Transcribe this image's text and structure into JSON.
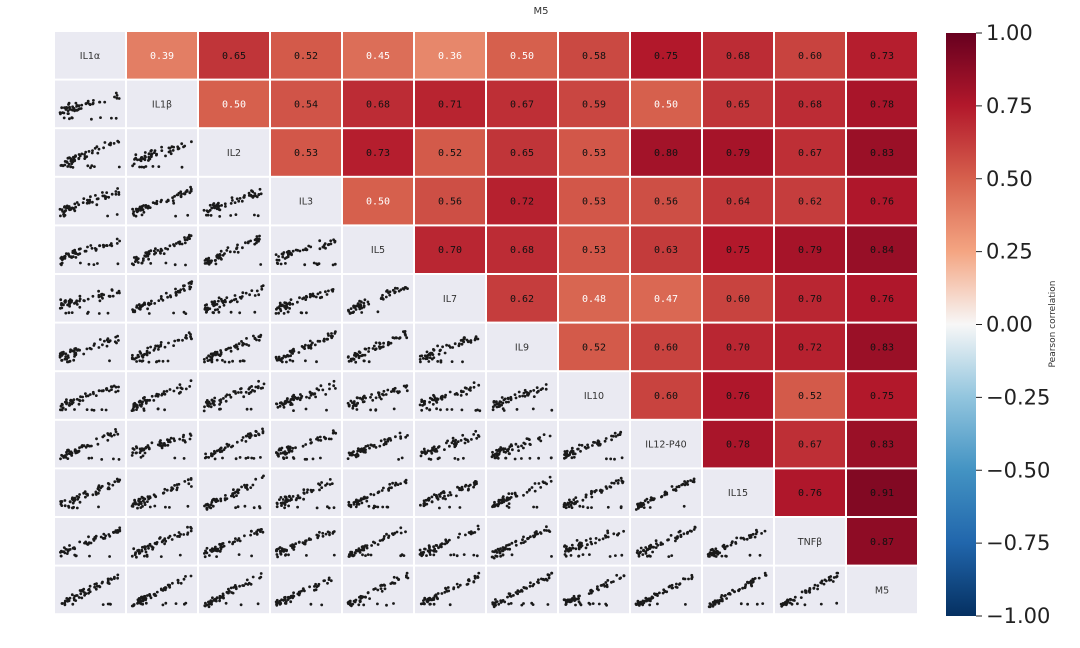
{
  "chart_data": {
    "type": "heatmap",
    "subtype": "correlation-pair-grid",
    "title": "M5",
    "variables": [
      "IL1α",
      "IL1β",
      "IL2",
      "IL3",
      "IL5",
      "IL7",
      "IL9",
      "IL10",
      "IL12-P40",
      "IL15",
      "TNFβ",
      "M5"
    ],
    "correlations": [
      [
        1.0,
        0.39,
        0.65,
        0.52,
        0.45,
        0.36,
        0.5,
        0.58,
        0.75,
        0.68,
        0.6,
        0.73
      ],
      [
        0.39,
        1.0,
        0.5,
        0.54,
        0.68,
        0.71,
        0.67,
        0.59,
        0.5,
        0.65,
        0.68,
        0.78
      ],
      [
        0.65,
        0.5,
        1.0,
        0.53,
        0.73,
        0.52,
        0.65,
        0.53,
        0.8,
        0.79,
        0.67,
        0.83
      ],
      [
        0.52,
        0.54,
        0.53,
        1.0,
        0.5,
        0.56,
        0.72,
        0.53,
        0.56,
        0.64,
        0.62,
        0.76
      ],
      [
        0.45,
        0.68,
        0.73,
        0.5,
        1.0,
        0.7,
        0.68,
        0.53,
        0.63,
        0.75,
        0.79,
        0.84
      ],
      [
        0.36,
        0.71,
        0.52,
        0.56,
        0.7,
        1.0,
        0.62,
        0.48,
        0.47,
        0.6,
        0.7,
        0.76
      ],
      [
        0.5,
        0.67,
        0.65,
        0.72,
        0.68,
        0.62,
        1.0,
        0.52,
        0.6,
        0.7,
        0.72,
        0.83
      ],
      [
        0.58,
        0.59,
        0.53,
        0.53,
        0.53,
        0.48,
        0.52,
        1.0,
        0.6,
        0.76,
        0.52,
        0.75
      ],
      [
        0.75,
        0.5,
        0.8,
        0.56,
        0.63,
        0.47,
        0.6,
        0.6,
        1.0,
        0.78,
        0.67,
        0.83
      ],
      [
        0.68,
        0.65,
        0.79,
        0.64,
        0.75,
        0.6,
        0.7,
        0.76,
        0.78,
        1.0,
        0.76,
        0.91
      ],
      [
        0.6,
        0.68,
        0.67,
        0.62,
        0.79,
        0.7,
        0.72,
        0.52,
        0.67,
        0.76,
        1.0,
        0.87
      ],
      [
        0.73,
        0.78,
        0.83,
        0.76,
        0.84,
        0.76,
        0.83,
        0.75,
        0.83,
        0.91,
        0.87,
        1.0
      ]
    ],
    "lower_triangle": "scatter plots of each variable pair",
    "colorbar": {
      "label": "Pearson correlation",
      "range": [
        -1.0,
        1.0
      ],
      "ticks": [
        "1.00",
        "0.75",
        "0.50",
        "0.25",
        "0.00",
        "−0.25",
        "−0.50",
        "−0.75",
        "−1.00"
      ],
      "colormap": "RdBu_r"
    },
    "colors": {
      "diag_bg": "#eaeaf2",
      "point": "#1a1a1a",
      "grid": "#ffffff"
    }
  }
}
